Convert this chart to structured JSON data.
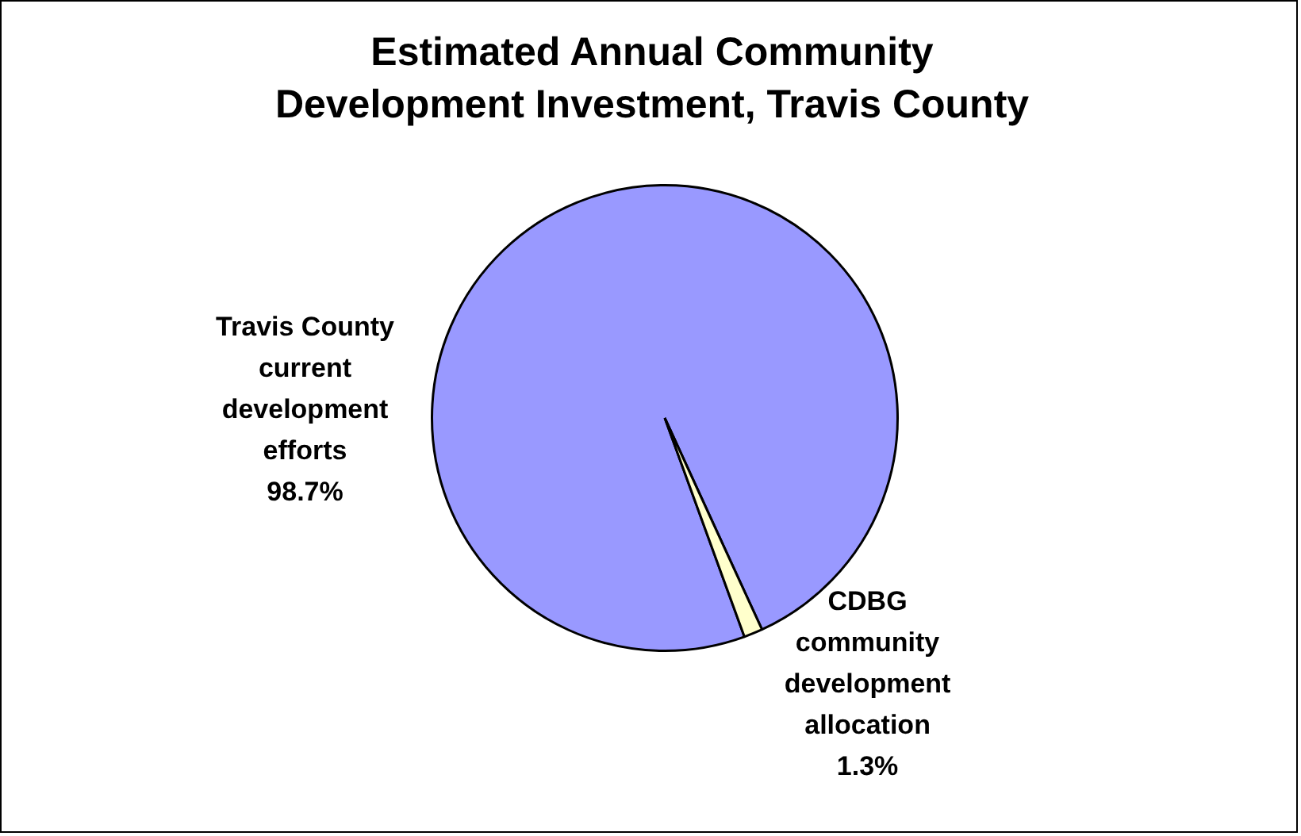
{
  "chart_data": {
    "type": "pie",
    "title": "Estimated Annual Community Development Investment, Travis County",
    "categories": [
      "Travis County current development efforts",
      "CDBG community development allocation"
    ],
    "values": [
      98.7,
      1.3
    ],
    "value_labels": [
      "98.7%",
      "1.3%"
    ],
    "colors": [
      "#9999ff",
      "#ffffcc"
    ]
  }
}
